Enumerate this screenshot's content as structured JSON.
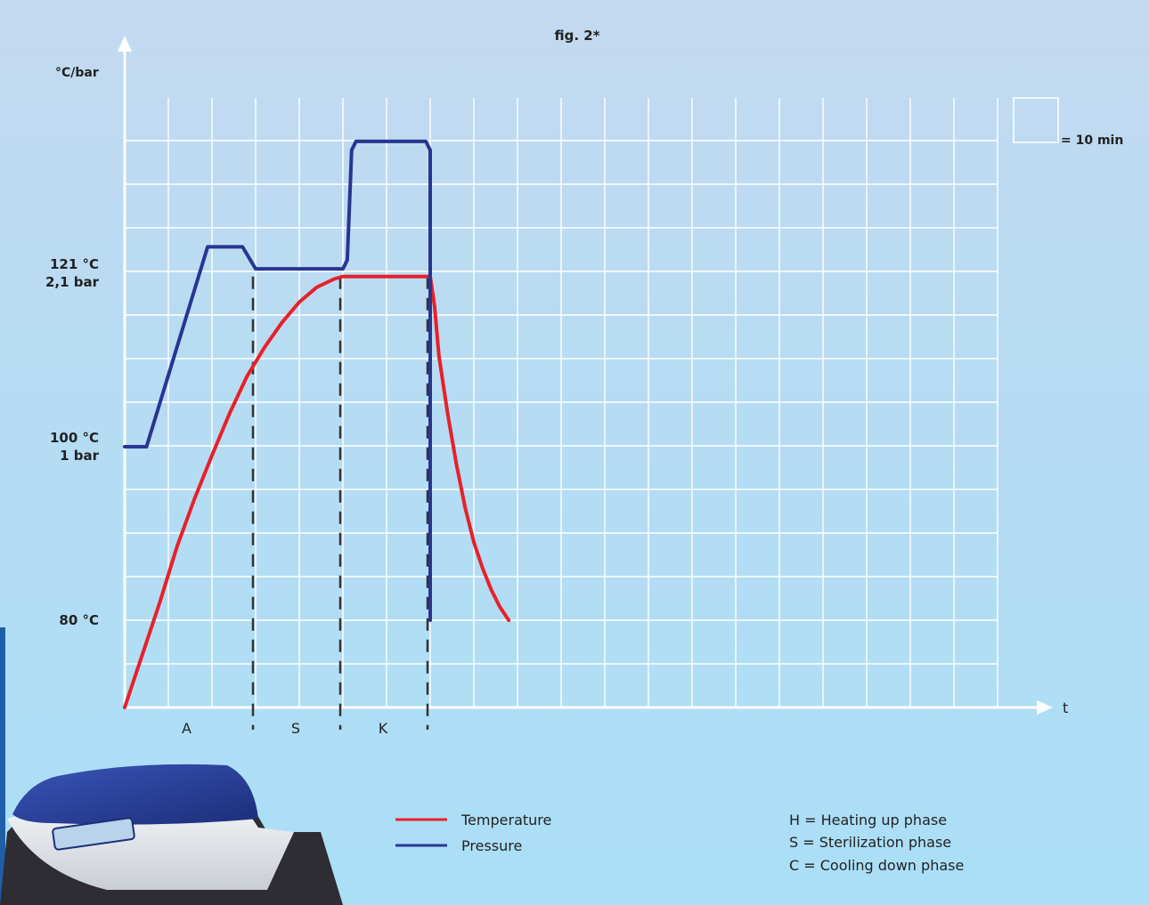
{
  "chart_data": {
    "type": "line",
    "title": "fig. 2*",
    "ylabel": "°C/bar",
    "xlabel": "t",
    "grid": true,
    "scale_label": "= 10 min",
    "y_tick_labels": [
      {
        "value": 121,
        "lines": [
          "121 °C",
          "2,1 bar"
        ]
      },
      {
        "value": 100,
        "lines": [
          "100 °C",
          "1 bar"
        ]
      },
      {
        "value": 80,
        "lines": [
          "80 °C"
        ]
      }
    ],
    "phase_labels": [
      {
        "x": 15,
        "label": "A"
      },
      {
        "x": 40,
        "label": "S"
      },
      {
        "x": 60,
        "label": "K"
      }
    ],
    "phase_boundaries": [
      30,
      50,
      70
    ],
    "xlim": [
      0,
      200
    ],
    "ylim": [
      70,
      145
    ],
    "series": [
      {
        "name": "Temperature",
        "color": "#e8202a",
        "points": [
          [
            0,
            70
          ],
          [
            4,
            76
          ],
          [
            8,
            82
          ],
          [
            12,
            88.5
          ],
          [
            16,
            94
          ],
          [
            20,
            99
          ],
          [
            24,
            104
          ],
          [
            28,
            108.5
          ],
          [
            32,
            112
          ],
          [
            36,
            115
          ],
          [
            40,
            117.5
          ],
          [
            44,
            119.3
          ],
          [
            48,
            120.3
          ],
          [
            50,
            120.6
          ],
          [
            70,
            120.6
          ],
          [
            71,
            117
          ],
          [
            72,
            111
          ],
          [
            74,
            104
          ],
          [
            76,
            98
          ],
          [
            78,
            93
          ],
          [
            80,
            89
          ],
          [
            82,
            86
          ],
          [
            84,
            83.5
          ],
          [
            86,
            81.5
          ],
          [
            88,
            80
          ]
        ]
      },
      {
        "name": "Pressure",
        "color": "#283593",
        "points": [
          [
            0,
            100
          ],
          [
            5,
            100
          ],
          [
            19,
            124
          ],
          [
            27,
            124
          ],
          [
            30,
            121.5
          ],
          [
            50,
            121.5
          ],
          [
            51,
            122.5
          ],
          [
            52,
            135
          ],
          [
            53,
            136
          ],
          [
            69,
            136
          ],
          [
            70,
            135
          ],
          [
            70,
            80
          ]
        ]
      }
    ]
  },
  "legend": {
    "items": [
      {
        "label": "Temperature",
        "color": "#e8202a"
      },
      {
        "label": "Pressure",
        "color": "#283593"
      }
    ]
  },
  "phase_legend": [
    "H = Heating up phase",
    "S = Sterilization phase",
    "C = Cooling down phase"
  ]
}
